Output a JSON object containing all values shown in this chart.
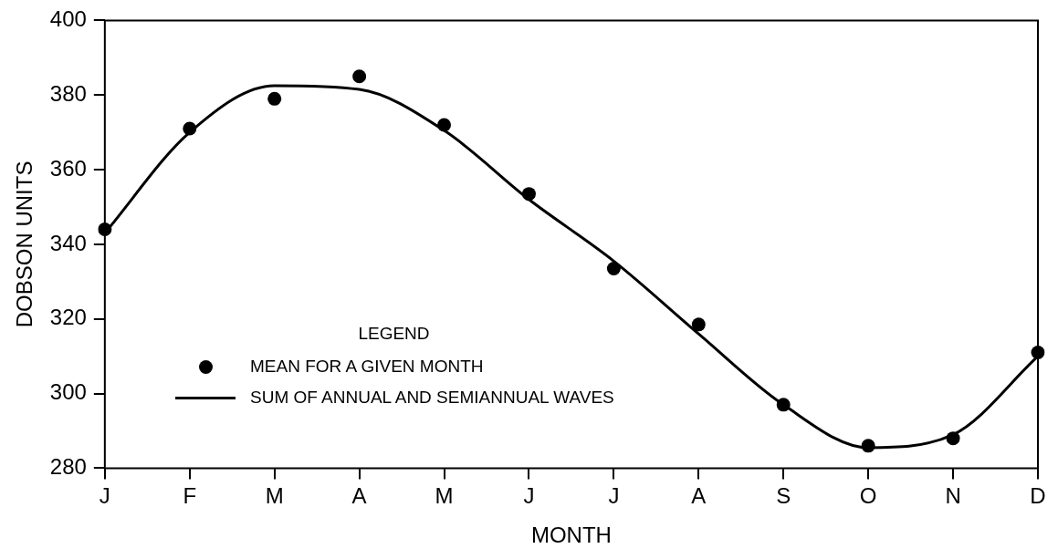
{
  "chart_data": {
    "type": "scatter",
    "xlabel": "MONTH",
    "ylabel": "DOBSON UNITS",
    "legend_title": "LEGEND",
    "legend": "bottom left",
    "grid": false,
    "categories": [
      "J",
      "F",
      "M",
      "A",
      "M",
      "J",
      "J",
      "A",
      "S",
      "O",
      "N",
      "D"
    ],
    "ylim": [
      280,
      400
    ],
    "yticks": [
      280,
      300,
      320,
      340,
      360,
      380,
      400
    ],
    "series": [
      {
        "name": "MEAN FOR A GIVEN MONTH",
        "marker": "circle",
        "color": "#000000",
        "values": [
          344,
          371,
          379,
          385,
          372,
          353.5,
          333.5,
          318.5,
          297,
          286,
          288,
          311
        ]
      },
      {
        "name": "SUM OF ANNUAL AND SEMIANNUAL WAVES",
        "type": "line",
        "marker": "none",
        "line_style": "solid",
        "color": "#000000",
        "values": [
          343,
          370,
          382.5,
          381.5,
          370.5,
          352,
          335.5,
          316,
          297,
          285.5,
          289,
          310
        ]
      }
    ]
  }
}
